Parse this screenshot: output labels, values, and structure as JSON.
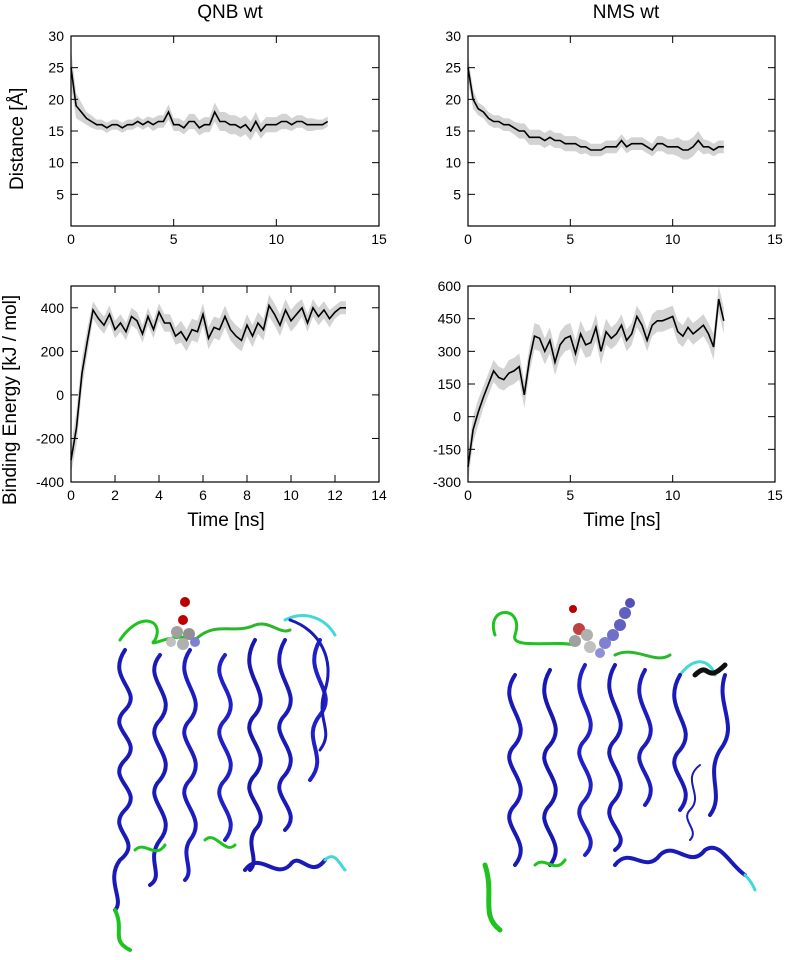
{
  "chart_data": [
    {
      "type": "line",
      "title": "QNB wt",
      "xlabel": "",
      "ylabel": "Distance [Å]",
      "xlim": [
        0,
        15
      ],
      "ylim": [
        0,
        30
      ],
      "xticks": [
        0,
        5,
        10,
        15
      ],
      "yticks": [
        5,
        10,
        15,
        20,
        25,
        30
      ],
      "band_color": "#d3d3d3",
      "line_color": "#000000",
      "x": [
        0,
        0.25,
        0.5,
        0.75,
        1,
        1.25,
        1.5,
        1.75,
        2,
        2.25,
        2.5,
        2.75,
        3,
        3.25,
        3.5,
        3.75,
        4,
        4.25,
        4.5,
        4.75,
        5,
        5.25,
        5.5,
        5.75,
        6,
        6.25,
        6.5,
        6.75,
        7,
        7.25,
        7.5,
        7.75,
        8,
        8.25,
        8.5,
        8.75,
        9,
        9.25,
        9.5,
        9.75,
        10,
        10.25,
        10.5,
        10.75,
        11,
        11.25,
        11.5,
        11.75,
        12,
        12.25,
        12.5
      ],
      "y": [
        25,
        19,
        18,
        17,
        16.5,
        16,
        16,
        15.5,
        16,
        16,
        15.5,
        16,
        16,
        16.5,
        16,
        16.5,
        16,
        16.5,
        16.5,
        18,
        16,
        16,
        15.5,
        16.5,
        16.5,
        15.5,
        16,
        16,
        18,
        16.5,
        16.5,
        16,
        16,
        15.5,
        16,
        15,
        16.5,
        15,
        16,
        16,
        16,
        16.5,
        16.5,
        16,
        16.5,
        16.5,
        16,
        16,
        16,
        16,
        16.5
      ],
      "band": [
        3,
        2,
        1.5,
        1,
        1,
        0.8,
        0.8,
        0.8,
        0.8,
        0.8,
        0.8,
        0.8,
        0.8,
        0.8,
        0.8,
        0.8,
        1,
        1,
        1,
        1.2,
        1,
        1,
        1,
        1.2,
        1.2,
        1.2,
        1.2,
        1.2,
        1.5,
        1.5,
        1.5,
        1.5,
        1.5,
        1.5,
        1.5,
        1.5,
        1.5,
        1.2,
        1.2,
        1.2,
        1.2,
        1.2,
        1.2,
        1,
        1,
        1,
        1,
        1,
        0.8,
        0.8,
        0.8
      ]
    },
    {
      "type": "line",
      "title": "NMS wt",
      "xlabel": "",
      "ylabel": "",
      "xlim": [
        0,
        15
      ],
      "ylim": [
        0,
        30
      ],
      "xticks": [
        0,
        5,
        10,
        15
      ],
      "yticks": [
        5,
        10,
        15,
        20,
        25,
        30
      ],
      "band_color": "#d3d3d3",
      "line_color": "#000000",
      "x": [
        0,
        0.25,
        0.5,
        0.75,
        1,
        1.25,
        1.5,
        1.75,
        2,
        2.25,
        2.5,
        2.75,
        3,
        3.25,
        3.5,
        3.75,
        4,
        4.25,
        4.5,
        4.75,
        5,
        5.25,
        5.5,
        5.75,
        6,
        6.25,
        6.5,
        6.75,
        7,
        7.25,
        7.5,
        7.75,
        8,
        8.25,
        8.5,
        8.75,
        9,
        9.25,
        9.5,
        9.75,
        10,
        10.25,
        10.5,
        10.75,
        11,
        11.25,
        11.5,
        11.75,
        12,
        12.25,
        12.5
      ],
      "y": [
        25,
        20,
        18.5,
        18,
        17,
        16.5,
        16.5,
        16,
        16,
        15.5,
        15,
        15,
        14,
        14,
        14,
        13.5,
        14,
        13.5,
        13.5,
        13,
        13,
        13,
        12.5,
        12.5,
        12,
        12,
        12,
        12.5,
        12.5,
        12.5,
        13.5,
        12.5,
        13,
        13,
        13,
        12.5,
        12,
        13,
        13,
        12.5,
        12.5,
        12.5,
        12,
        12,
        12.5,
        13.5,
        12.5,
        12.5,
        12,
        12.5,
        12.5
      ],
      "band": [
        2,
        1.5,
        1,
        1,
        1,
        1,
        1,
        1,
        1,
        1,
        1.2,
        1.2,
        1.2,
        1.2,
        1.2,
        1.2,
        1.2,
        1.2,
        1.2,
        1.2,
        1.2,
        1.2,
        1.2,
        1,
        1,
        1,
        1,
        1,
        1,
        1,
        1,
        1,
        1,
        1,
        1,
        1,
        1,
        1.2,
        1.2,
        1.2,
        1.2,
        1.5,
        1.5,
        1.5,
        1.5,
        1.5,
        1.2,
        1,
        1,
        1,
        1
      ]
    },
    {
      "type": "line",
      "title": "",
      "xlabel": "Time [ns]",
      "ylabel": "Binding Energy [kJ / mol]",
      "xlim": [
        0,
        14
      ],
      "ylim": [
        -400,
        500
      ],
      "xticks": [
        0,
        2,
        4,
        6,
        8,
        10,
        12,
        14
      ],
      "yticks": [
        -400,
        -200,
        0,
        200,
        400
      ],
      "band_color": "#d3d3d3",
      "line_color": "#000000",
      "x": [
        0,
        0.25,
        0.5,
        0.75,
        1,
        1.25,
        1.5,
        1.75,
        2,
        2.25,
        2.5,
        2.75,
        3,
        3.25,
        3.5,
        3.75,
        4,
        4.25,
        4.5,
        4.75,
        5,
        5.25,
        5.5,
        5.75,
        6,
        6.25,
        6.5,
        6.75,
        7,
        7.25,
        7.5,
        7.75,
        8,
        8.25,
        8.5,
        8.75,
        9,
        9.25,
        9.5,
        9.75,
        10,
        10.25,
        10.5,
        10.75,
        11,
        11.25,
        11.5,
        11.75,
        12,
        12.25,
        12.5
      ],
      "y": [
        -300,
        -150,
        100,
        250,
        390,
        350,
        320,
        370,
        300,
        330,
        290,
        360,
        340,
        280,
        360,
        300,
        380,
        330,
        330,
        270,
        290,
        250,
        300,
        290,
        370,
        260,
        310,
        300,
        360,
        300,
        270,
        250,
        320,
        270,
        330,
        300,
        410,
        370,
        320,
        390,
        340,
        370,
        400,
        330,
        400,
        360,
        390,
        350,
        380,
        400,
        400
      ],
      "band": [
        60,
        80,
        70,
        60,
        40,
        40,
        40,
        40,
        40,
        40,
        40,
        40,
        40,
        40,
        40,
        40,
        40,
        40,
        40,
        40,
        50,
        50,
        50,
        50,
        50,
        50,
        50,
        50,
        50,
        50,
        50,
        50,
        50,
        50,
        50,
        50,
        50,
        50,
        50,
        50,
        50,
        50,
        40,
        40,
        40,
        40,
        40,
        40,
        30,
        30,
        30
      ]
    },
    {
      "type": "line",
      "title": "",
      "xlabel": "Time [ns]",
      "ylabel": "",
      "xlim": [
        0,
        15
      ],
      "ylim": [
        -300,
        600
      ],
      "xticks": [
        0,
        5,
        10,
        15
      ],
      "yticks": [
        -300,
        -150,
        0,
        150,
        300,
        450,
        600
      ],
      "band_color": "#d3d3d3",
      "line_color": "#000000",
      "x": [
        0,
        0.25,
        0.5,
        0.75,
        1,
        1.25,
        1.5,
        1.75,
        2,
        2.25,
        2.5,
        2.75,
        3,
        3.25,
        3.5,
        3.75,
        4,
        4.25,
        4.5,
        4.75,
        5,
        5.25,
        5.5,
        5.75,
        6,
        6.25,
        6.5,
        6.75,
        7,
        7.25,
        7.5,
        7.75,
        8,
        8.25,
        8.5,
        8.75,
        9,
        9.25,
        9.5,
        9.75,
        10,
        10.25,
        10.5,
        10.75,
        11,
        11.25,
        11.5,
        11.75,
        12,
        12.25,
        12.5
      ],
      "y": [
        -230,
        -60,
        20,
        90,
        150,
        210,
        180,
        170,
        200,
        210,
        230,
        100,
        260,
        370,
        360,
        300,
        350,
        250,
        330,
        360,
        370,
        290,
        380,
        330,
        340,
        410,
        300,
        390,
        360,
        380,
        420,
        350,
        380,
        460,
        420,
        350,
        420,
        440,
        440,
        450,
        460,
        390,
        370,
        410,
        380,
        400,
        420,
        380,
        320,
        540,
        440
      ],
      "band": [
        70,
        60,
        60,
        50,
        50,
        50,
        50,
        50,
        60,
        60,
        60,
        60,
        60,
        60,
        60,
        60,
        60,
        60,
        60,
        60,
        60,
        60,
        60,
        60,
        60,
        60,
        60,
        60,
        50,
        50,
        50,
        50,
        50,
        50,
        50,
        50,
        50,
        50,
        50,
        50,
        50,
        50,
        50,
        50,
        50,
        50,
        50,
        50,
        60,
        60,
        60
      ]
    }
  ]
}
